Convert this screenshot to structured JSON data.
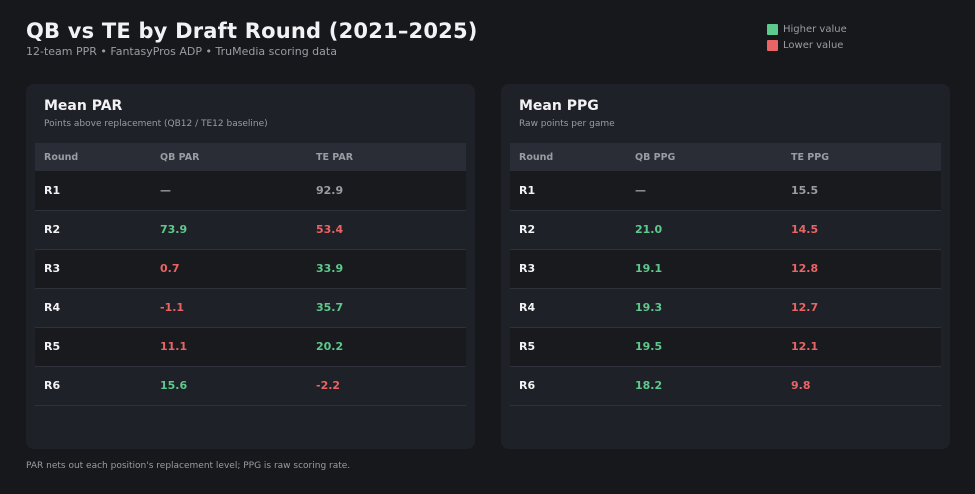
{
  "header": {
    "title": "QB vs TE by Draft Round (2021–2025)",
    "subtitle": "12-team PPR  •  FantasyPros ADP  •  TruMedia scoring data"
  },
  "legend": {
    "items": [
      {
        "label": "Higher value",
        "color": "#5ec98c"
      },
      {
        "label": "Lower value",
        "color": "#e96464"
      }
    ]
  },
  "footnote": "PAR nets out each position's replacement level; PPG is raw scoring rate.",
  "chart_data": [
    {
      "type": "table",
      "title": "Mean PAR",
      "subtitle": "Points above replacement (QB12 / TE12 baseline)",
      "columns": [
        "Round",
        "QB PAR",
        "TE PAR"
      ],
      "rows": [
        {
          "round": "R1",
          "qb": "—",
          "te": "92.9",
          "qb_status": "neutral",
          "te_status": "neutral"
        },
        {
          "round": "R2",
          "qb": "73.9",
          "te": "53.4",
          "qb_status": "good",
          "te_status": "bad"
        },
        {
          "round": "R3",
          "qb": "0.7",
          "te": "33.9",
          "qb_status": "bad",
          "te_status": "good"
        },
        {
          "round": "R4",
          "qb": "-1.1",
          "te": "35.7",
          "qb_status": "bad",
          "te_status": "good"
        },
        {
          "round": "R5",
          "qb": "11.1",
          "te": "20.2",
          "qb_status": "bad",
          "te_status": "good"
        },
        {
          "round": "R6",
          "qb": "15.6",
          "te": "-2.2",
          "qb_status": "good",
          "te_status": "bad"
        }
      ]
    },
    {
      "type": "table",
      "title": "Mean PPG",
      "subtitle": "Raw points per game",
      "columns": [
        "Round",
        "QB PPG",
        "TE PPG"
      ],
      "rows": [
        {
          "round": "R1",
          "qb": "—",
          "te": "15.5",
          "qb_status": "neutral",
          "te_status": "neutral"
        },
        {
          "round": "R2",
          "qb": "21.0",
          "te": "14.5",
          "qb_status": "good",
          "te_status": "bad"
        },
        {
          "round": "R3",
          "qb": "19.1",
          "te": "12.8",
          "qb_status": "good",
          "te_status": "bad"
        },
        {
          "round": "R4",
          "qb": "19.3",
          "te": "12.7",
          "qb_status": "good",
          "te_status": "bad"
        },
        {
          "round": "R5",
          "qb": "19.5",
          "te": "12.1",
          "qb_status": "good",
          "te_status": "bad"
        },
        {
          "round": "R6",
          "qb": "18.2",
          "te": "9.8",
          "qb_status": "good",
          "te_status": "bad"
        }
      ]
    }
  ]
}
